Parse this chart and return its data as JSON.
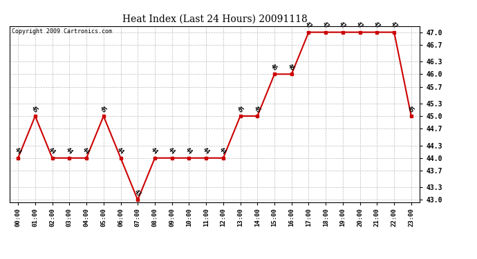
{
  "title": "Heat Index (Last 24 Hours) 20091118",
  "copyright": "Copyright 2009 Cartronics.com",
  "hours": [
    "00:00",
    "01:00",
    "02:00",
    "03:00",
    "04:00",
    "05:00",
    "06:00",
    "07:00",
    "08:00",
    "09:00",
    "10:00",
    "11:00",
    "12:00",
    "13:00",
    "14:00",
    "15:00",
    "16:00",
    "17:00",
    "18:00",
    "19:00",
    "20:00",
    "21:00",
    "22:00",
    "23:00"
  ],
  "values": [
    44,
    45,
    44,
    44,
    44,
    45,
    44,
    43,
    44,
    44,
    44,
    44,
    44,
    45,
    45,
    46,
    46,
    47,
    47,
    47,
    47,
    47,
    47,
    45
  ],
  "line_color": "#cc0000",
  "marker_color": "#cc0000",
  "bg_color": "#ffffff",
  "grid_color": "#bbbbbb",
  "ylim_min": 43.0,
  "ylim_max": 47.0,
  "yticks": [
    47.0,
    46.7,
    46.3,
    46.0,
    45.7,
    45.3,
    45.0,
    44.7,
    44.3,
    44.0,
    43.7,
    43.3,
    43.0
  ]
}
